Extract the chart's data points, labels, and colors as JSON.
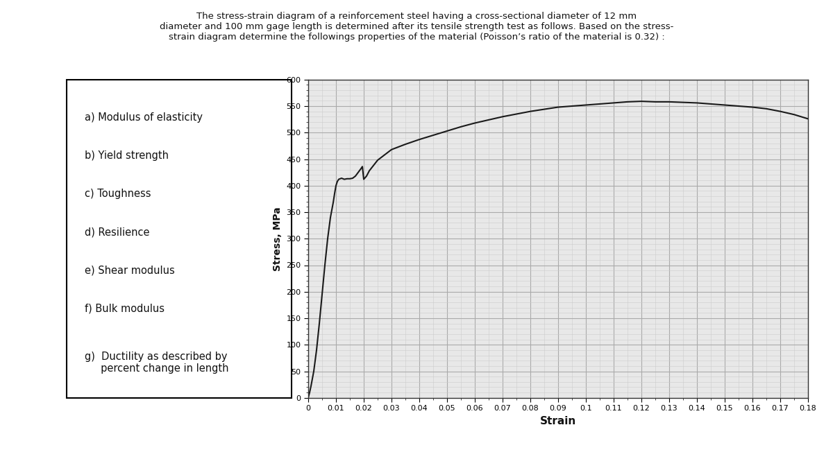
{
  "title_text": "The stress-strain diagram of a reinforcement steel having a cross-sectional diameter of 12 mm\ndiameter and 100 mm gage length is determined after its tensile strength test as follows. Based on the stress-\nstrain diagram determine the followings properties of the material (Poisson’s ratio of the material is 0.32) :",
  "ylabel": "Stress, MPa",
  "xlabel": "Strain",
  "ylim": [
    0,
    600
  ],
  "xlim": [
    0,
    0.18
  ],
  "yticks": [
    0,
    50,
    100,
    150,
    200,
    250,
    300,
    350,
    400,
    450,
    500,
    550,
    600
  ],
  "xticks": [
    0,
    0.01,
    0.02,
    0.03,
    0.04,
    0.05,
    0.06,
    0.07,
    0.08,
    0.09,
    0.1,
    0.11,
    0.12,
    0.13,
    0.14,
    0.15,
    0.16,
    0.17,
    0.18
  ],
  "curve_color": "#1a1a1a",
  "grid_major_color": "#aaaaaa",
  "grid_minor_color": "#cccccc",
  "background_color": "#ffffff",
  "chart_bg_color": "#e8e8e8",
  "left_panel_items": [
    "a) Modulus of elasticity",
    "b) Yield strength",
    "c) Toughness",
    "d) Resilience",
    "e) Shear modulus",
    "f) Bulk modulus",
    "g)  Ductility as described by\n     percent change in length"
  ],
  "strain": [
    0,
    0.0005,
    0.001,
    0.002,
    0.003,
    0.004,
    0.005,
    0.006,
    0.007,
    0.008,
    0.009,
    0.0095,
    0.01,
    0.0105,
    0.011,
    0.012,
    0.013,
    0.014,
    0.015,
    0.016,
    0.017,
    0.018,
    0.019,
    0.0195,
    0.02,
    0.021,
    0.022,
    0.025,
    0.03,
    0.035,
    0.04,
    0.045,
    0.05,
    0.055,
    0.06,
    0.065,
    0.07,
    0.075,
    0.08,
    0.085,
    0.09,
    0.095,
    0.1,
    0.105,
    0.11,
    0.115,
    0.12,
    0.125,
    0.13,
    0.135,
    0.14,
    0.145,
    0.15,
    0.155,
    0.16,
    0.165,
    0.17,
    0.175,
    0.18
  ],
  "stress": [
    0,
    10,
    22,
    50,
    90,
    140,
    195,
    250,
    300,
    340,
    368,
    385,
    400,
    408,
    412,
    414,
    412,
    413,
    413,
    414,
    418,
    425,
    432,
    436,
    412,
    418,
    428,
    448,
    468,
    478,
    487,
    495,
    503,
    511,
    518,
    524,
    530,
    535,
    540,
    544,
    548,
    550,
    552,
    554,
    556,
    558,
    559,
    558,
    558,
    557,
    556,
    554,
    552,
    550,
    548,
    545,
    540,
    534,
    526
  ]
}
